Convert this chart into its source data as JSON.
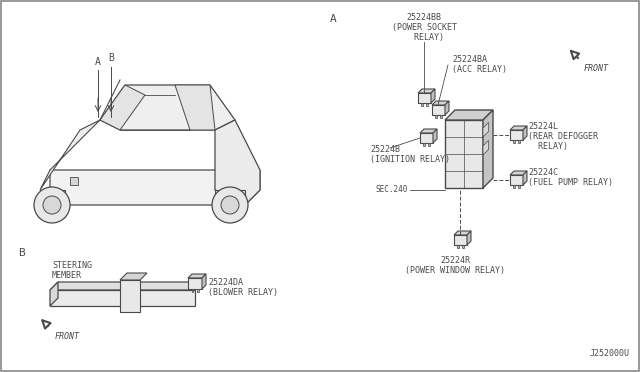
{
  "bg_color": "#ffffff",
  "line_color": "#4a4a4a",
  "part_number": "J252000U",
  "font_size": 6.0,
  "font_family": "monospace",
  "labels": {
    "25224BB": "25224BB\n(POWER SOCKET\n  RELAY)",
    "25224BA": "25224BA\n(ACC RELAY)",
    "25224B": "25224B\n(IGNITION RELAY)",
    "25224L": "25224L\n(REAR DEFOGGER\n  RELAY)",
    "25224C": "25224C\n(FUEL PUMP RELAY)",
    "25224R": "25224R\n(POWER WINDOW RELAY)",
    "25224DA": "25224DA\n(BLOWER RELAY)",
    "SEC240": "SEC.240",
    "STEERING": "STEERING\nMEMBER",
    "FRONT": "FRONT"
  }
}
